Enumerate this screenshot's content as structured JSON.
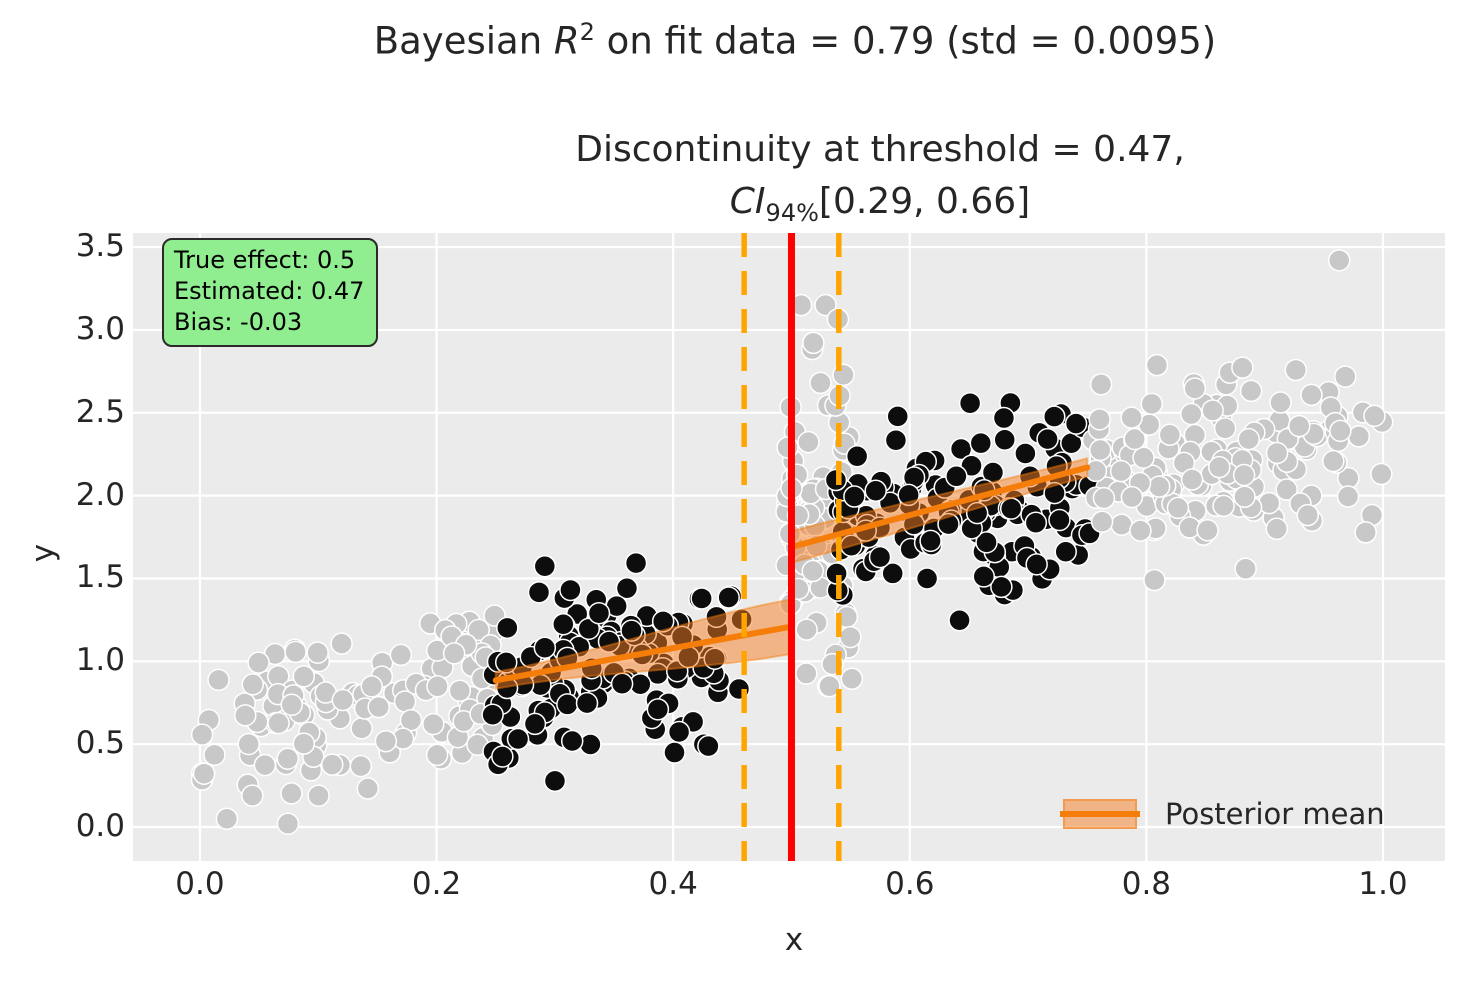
{
  "title": {
    "pre": "Bayesian ",
    "math_var": "R",
    "math_sup": "2",
    "post": " on fit data = 0.79 (std = 0.0095)"
  },
  "subtitle": {
    "line1": "Discontinuity at threshold = 0.47,",
    "ci_var": "CI",
    "ci_sub": "94%",
    "ci_range": "[0.29, 0.66]"
  },
  "annotation_box": {
    "line1": "True effect: 0.5",
    "line2": "Estimated: 0.47",
    "line3": "Bias: -0.03",
    "bg_color": "#90ee90",
    "border_color": "#2a2a2a"
  },
  "legend": {
    "label": "Posterior mean"
  },
  "axes": {
    "xlabel": "x",
    "ylabel": "y",
    "x_tick_labels": [
      "0.0",
      "0.2",
      "0.4",
      "0.6",
      "0.8",
      "1.0"
    ],
    "x_tick_values": [
      0.0,
      0.2,
      0.4,
      0.6,
      0.8,
      1.0
    ],
    "y_tick_labels": [
      "0.0",
      "0.5",
      "1.0",
      "1.5",
      "2.0",
      "2.5",
      "3.0",
      "3.5"
    ],
    "y_tick_values": [
      0.0,
      0.5,
      1.0,
      1.5,
      2.0,
      2.5,
      3.0,
      3.5
    ]
  },
  "chart_data": {
    "type": "scatter",
    "title": "Bayesian R^2 on fit data = 0.79 (std = 0.0095)",
    "subtitle": "Discontinuity at threshold = 0.47, CI_94% [0.29, 0.66]",
    "xlabel": "x",
    "ylabel": "y",
    "xlim": [
      -0.0566,
      1.0524
    ],
    "ylim": [
      -0.205,
      3.585
    ],
    "grid": true,
    "legend_position": "lower right",
    "bayes_r2": 0.79,
    "bayes_r2_std": 0.0095,
    "true_effect": 0.5,
    "estimated_effect": 0.47,
    "bias": -0.03,
    "discontinuity_ci_94": [
      0.29,
      0.66
    ],
    "true_threshold": 0.5,
    "threshold_window": [
      0.46,
      0.54
    ],
    "posterior_mean_segments": [
      {
        "x": [
          0.25,
          0.5
        ],
        "y": [
          0.885,
          1.21
        ],
        "band_half": [
          0.05,
          0.165
        ]
      },
      {
        "x": [
          0.5,
          0.75
        ],
        "y": [
          1.69,
          2.17
        ],
        "band_half": [
          0.095,
          0.055
        ]
      }
    ],
    "scatter_clusters": [
      {
        "name": "unused-left",
        "color": "#c8c8c8",
        "n": 135,
        "x_range": [
          0.0,
          0.25
        ],
        "trend": {
          "intercept": 0.55,
          "slope": 1.3
        },
        "noise_sd": 0.27
      },
      {
        "name": "fit-left",
        "color": "#0d0d0d",
        "n": 135,
        "x_range": [
          0.247,
          0.462
        ],
        "trend": {
          "intercept": 0.55,
          "slope": 1.3
        },
        "noise_sd": 0.27
      },
      {
        "name": "unused-threshold-column",
        "color": "#c8c8c8",
        "n": 95,
        "x_range": [
          0.494,
          0.551
        ],
        "y_center": 1.9,
        "y_sd": 0.55,
        "y_min": 0.85,
        "y_max": 3.15
      },
      {
        "name": "fit-right",
        "color": "#0d0d0d",
        "n": 150,
        "x_range": [
          0.537,
          0.755
        ],
        "trend": {
          "intercept": 1.05,
          "slope": 1.3
        },
        "noise_sd": 0.27
      },
      {
        "name": "unused-right",
        "color": "#c8c8c8",
        "n": 150,
        "x_range": [
          0.755,
          1.0
        ],
        "trend": {
          "intercept": 1.05,
          "slope": 1.3
        },
        "noise_sd": 0.28,
        "extra_points": [
          [
            0.963,
            3.42
          ]
        ]
      }
    ],
    "styles": {
      "plot_bg": "#ebebeb",
      "grid_color": "#ffffff",
      "fit_point_color": "#0d0d0d",
      "unused_point_color": "#c8c8c8",
      "point_edge_color": "#ffffff",
      "posterior_line_color": "#f57d0a",
      "band_fill_hex": "#f77e21",
      "band_fill_rgba": "rgba(247,126,33,0.5)",
      "band_edge_rgba": "rgba(245,125,10,0.45)",
      "true_threshold_color": "#ff0000",
      "threshold_window_color": "#ffa500",
      "text_color": "#262626"
    }
  }
}
